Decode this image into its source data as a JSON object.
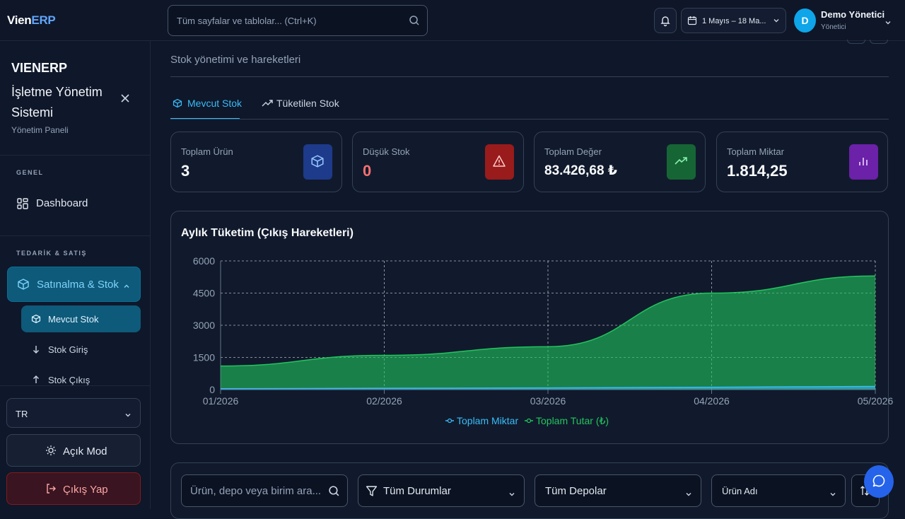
{
  "app": {
    "logo_a": "Vien",
    "logo_b": "ERP"
  },
  "search": {
    "placeholder": "Tüm sayfalar ve tablolar... (Ctrl+K)"
  },
  "header": {
    "date_range": "1 Mayıs – 18 Ma...",
    "user_name": "Demo Yönetici",
    "user_role": "Yönetici",
    "avatar_letter": "D"
  },
  "sidebar": {
    "brand_title": "VIENERP",
    "brand_subtitle": "İşletme Yönetim Sistemi",
    "brand_caption": "Yönetim Paneli",
    "section_general": "GENEL",
    "item_dashboard": "Dashboard",
    "section_supply": "TEDARİK & SATIŞ",
    "item_purchase_stock": "Satınalma & Stok",
    "sub_current_stock": "Mevcut Stok",
    "sub_stock_in": "Stok Giriş",
    "sub_stock_out": "Stok Çıkış",
    "language": "TR",
    "light_mode": "Açık Mod",
    "logout": "Çıkış Yap"
  },
  "page": {
    "subtitle": "Stok yönetimi ve hareketleri",
    "tabs": [
      {
        "label": "Mevcut Stok"
      },
      {
        "label": "Tüketilen Stok"
      }
    ]
  },
  "stats": [
    {
      "title": "Toplam Ürün",
      "value": "3",
      "color": "#1e3a8a",
      "icon": "package-icon"
    },
    {
      "title": "Düşük Stok",
      "value": "0",
      "color": "#991b1b",
      "icon": "warning-icon"
    },
    {
      "title": "Toplam Değer",
      "value": "83.426,68 ₺",
      "color": "#166534",
      "icon": "trending-up-icon"
    },
    {
      "title": "Toplam Miktar",
      "value": "1.814,25",
      "color": "#6b21a8",
      "icon": "bar-chart-icon"
    }
  ],
  "chart_data": {
    "type": "area",
    "title": "Aylık Tüketim (Çıkış Hareketleri)",
    "categories": [
      "01/2026",
      "02/2026",
      "03/2026",
      "04/2026",
      "05/2026"
    ],
    "yticks": [
      0,
      1500,
      3000,
      4500,
      6000
    ],
    "ylim": [
      0,
      6000
    ],
    "grid": true,
    "legend_position": "bottom",
    "series": [
      {
        "name": "Toplam Miktar",
        "values": [
          40,
          60,
          80,
          110,
          150
        ],
        "color": "#38bdf8"
      },
      {
        "name": "Toplam Tutar (₺)",
        "values": [
          1100,
          1600,
          2000,
          4500,
          5300
        ],
        "color": "#22c55e"
      }
    ]
  },
  "filters": {
    "search_placeholder": "Ürün, depo veya birim ara...",
    "status": "Tüm Durumlar",
    "warehouse": "Tüm Depolar",
    "sort": "Ürün Adı"
  }
}
